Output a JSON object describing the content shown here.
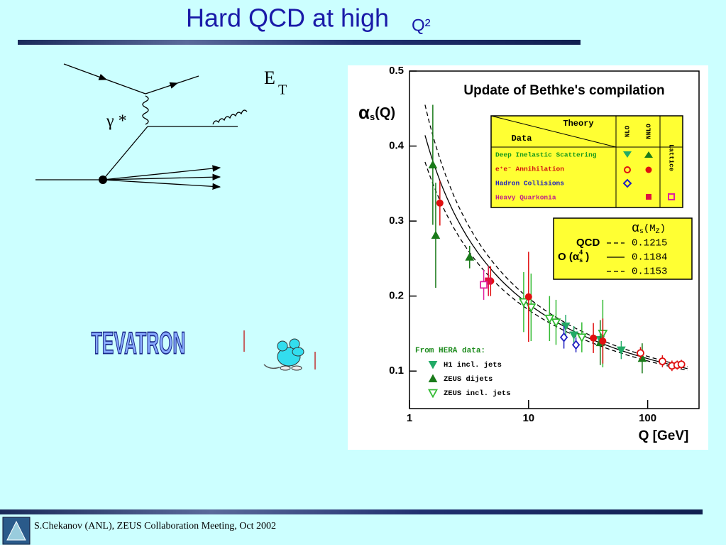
{
  "slide": {
    "title": "Hard QCD at high",
    "title_suffix": "Q²",
    "footer": "S.Chekanov (ANL), ZEUS Collaboration Meeting, Oct 2002"
  },
  "diagram": {
    "photon_label": "γ *",
    "et_label": "E",
    "et_subscript": "T"
  },
  "tevatron": "TEVATRON",
  "chart_data": {
    "type": "scatter",
    "title": "Update of Bethke's compilation",
    "y_label": [
      "α",
      "s",
      "(Q)"
    ],
    "x_label": "Q [GeV]",
    "log_x": true,
    "xlim": [
      1,
      270
    ],
    "xticks": [
      1,
      10,
      100
    ],
    "ylim": [
      0.05,
      0.5
    ],
    "yticks": [
      0.1,
      0.2,
      0.3,
      0.4,
      0.5
    ],
    "legend_table": {
      "theory": "Theory",
      "data": "Data",
      "columns": [
        "NLO",
        "NNLO",
        "Lattice"
      ],
      "rows": [
        {
          "label": "Deep Inelastic Scattering",
          "color": "#1a9a1a"
        },
        {
          "label": "e⁺e⁻ Annihilation",
          "color": "#d01010"
        },
        {
          "label": "Hadron Collisions",
          "color": "#2020c0"
        },
        {
          "label": "Heavy Quarkonia",
          "color": "#c0208a"
        }
      ]
    },
    "alphas_box": {
      "header": [
        "α",
        "s",
        "(M",
        "Z",
        ")"
      ],
      "qcd": "QCD",
      "order": [
        "O (α",
        "s",
        "4",
        " )"
      ]
    },
    "curves": [
      {
        "value": 0.1215,
        "style": "dashed"
      },
      {
        "value": 0.1184,
        "style": "solid"
      },
      {
        "value": 0.1153,
        "style": "dashed"
      }
    ],
    "hera_title": "From HERA data:",
    "series": [
      {
        "name": "H1 incl. jets",
        "marker": "tri-down",
        "filled": true,
        "color": "#22aa66",
        "x": [
          20.5,
          24,
          40,
          60
        ],
        "values": [
          0.16,
          0.148,
          0.142,
          0.128
        ],
        "errors": [
          0.015,
          0.012,
          0.013,
          0.012
        ]
      },
      {
        "name": "ZEUS dijets",
        "marker": "tri-up",
        "filled": true,
        "color": "#1a7a1a",
        "x": [
          1.57,
          1.66,
          3.2,
          40,
          90
        ],
        "values": [
          0.375,
          0.281,
          0.252,
          0.138,
          0.117
        ],
        "errors": [
          0.08,
          0.07,
          0.015,
          0.03,
          0.02
        ]
      },
      {
        "name": "ZEUS incl. jets",
        "marker": "tri-down",
        "filled": false,
        "color": "#33bb33",
        "x": [
          9.1,
          10.5,
          15,
          17,
          28,
          42
        ],
        "values": [
          0.192,
          0.185,
          0.17,
          0.165,
          0.145,
          0.15
        ],
        "errors": [
          0.04,
          0.045,
          0.03,
          0.03,
          0.02,
          0.045
        ]
      },
      {
        "marker": "circle",
        "filled": true,
        "color": "#e01010",
        "x": [
          1.8,
          4.8,
          10,
          35,
          42
        ],
        "values": [
          0.324,
          0.22,
          0.199,
          0.144,
          0.14
        ],
        "errors": [
          0.03,
          0.02,
          0.06,
          0.02,
          0.03
        ]
      },
      {
        "marker": "circle",
        "filled": false,
        "color": "#e01010",
        "x": [
          87,
          133,
          160,
          177,
          192
        ],
        "values": [
          0.124,
          0.113,
          0.107,
          0.108,
          0.109
        ],
        "errors": [
          0.008,
          0.008,
          0.007,
          0.006,
          0.006
        ]
      },
      {
        "marker": "diamond",
        "filled": false,
        "color": "#2020c0",
        "x": [
          19.8,
          25
        ],
        "values": [
          0.145,
          0.135
        ],
        "errors": [
          0.015,
          0.01
        ]
      },
      {
        "marker": "square",
        "filled": true,
        "color": "#e01040",
        "x": [
          4.6
        ],
        "values": [
          0.22
        ],
        "errors": [
          0.02
        ]
      },
      {
        "marker": "square",
        "filled": false,
        "color": "#e020a0",
        "x": [
          4.2
        ],
        "values": [
          0.215
        ],
        "errors": [
          0.02
        ]
      }
    ]
  }
}
